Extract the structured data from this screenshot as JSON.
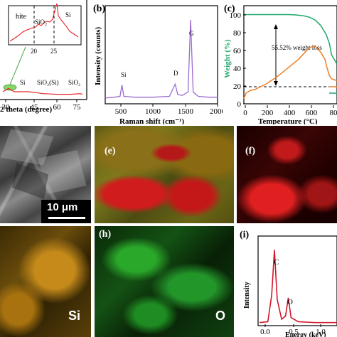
{
  "panel_labels": {
    "b": "(b)",
    "c": "(c)",
    "e": "(e)",
    "f": "(f)",
    "h": "(h)",
    "i": "(i)"
  },
  "map_labels": {
    "h_element": "O",
    "g_element": "Si"
  },
  "sem": {
    "scalebar": "10 μm"
  },
  "chart_data": [
    {
      "id": "a",
      "type": "line",
      "xlabel": "2 theta (degree)",
      "xlim": [
        20,
        80
      ],
      "x_ticks": [
        "30",
        "45",
        "60",
        "75"
      ],
      "legend_partial": "hite",
      "inset_annotations": [
        "SiO₂",
        "Si"
      ],
      "inset_ticks": [
        "20",
        "25"
      ],
      "peak_annotations": [
        "Si",
        "SiO₂(Si)",
        "SiO₂"
      ],
      "series": [
        {
          "color": "#e8222a",
          "x": [
            22,
            26,
            28.4,
            30,
            40,
            47.3,
            50,
            55.8,
            60,
            70,
            76.4,
            78
          ],
          "y": [
            2,
            3,
            2.4,
            2,
            2,
            1.6,
            1.4,
            1.3,
            1.2,
            1.2,
            1.4,
            1.2
          ]
        }
      ]
    },
    {
      "id": "b",
      "type": "line",
      "title": "",
      "xlabel": "Raman shift (cm⁻¹)",
      "ylabel": "Intensity (counts)",
      "xlim": [
        250,
        2000
      ],
      "x_ticks": [
        "500",
        "1000",
        "1500",
        "2000"
      ],
      "annotations": [
        "Si",
        "D",
        "G"
      ],
      "series": [
        {
          "color": "#9b6bd1",
          "x": [
            250,
            400,
            480,
            510,
            540,
            700,
            1000,
            1250,
            1340,
            1380,
            1450,
            1540,
            1580,
            1620,
            1700,
            1850,
            2000
          ],
          "y": [
            0.05,
            0.06,
            0.07,
            0.2,
            0.07,
            0.06,
            0.06,
            0.07,
            0.21,
            0.09,
            0.08,
            0.12,
            0.95,
            0.12,
            0.07,
            0.06,
            0.06
          ]
        }
      ]
    },
    {
      "id": "c",
      "type": "line",
      "xlabel": "Temperature (°C)",
      "ylabel": "Weight (%)",
      "xlim": [
        0,
        850
      ],
      "ylim": [
        0,
        110
      ],
      "x_ticks": [
        "0",
        "200",
        "400",
        "600",
        "80"
      ],
      "y_ticks": [
        "0",
        "20",
        "40",
        "60",
        "80",
        "100"
      ],
      "annotation": "55.52% weight loss",
      "series": [
        {
          "color": "#1ea86b",
          "x": [
            0,
            200,
            400,
            450,
            500,
            550,
            600,
            650,
            700,
            750,
            780,
            800,
            850
          ],
          "y": [
            100,
            100,
            100,
            99.8,
            99.3,
            98.5,
            97,
            94,
            88,
            78,
            68,
            55,
            44.5
          ]
        },
        {
          "color": "#f07f24",
          "x": [
            0,
            20,
            60,
            100,
            200,
            300,
            400,
            500,
            560,
            600,
            650,
            700,
            740,
            760,
            780,
            800,
            850
          ],
          "y": [
            6,
            12,
            15,
            16,
            22,
            30,
            40,
            50,
            58,
            63,
            65,
            58,
            50,
            40,
            32,
            28,
            26
          ]
        }
      ]
    },
    {
      "id": "i",
      "type": "line",
      "xlabel": "Energy (keV)",
      "ylabel": "Intensity",
      "x_ticks": [
        "0.0",
        "0.5",
        "1.0"
      ],
      "annotations": [
        "C",
        "O"
      ],
      "series": [
        {
          "color": "#d0182a",
          "x": [
            0.0,
            0.15,
            0.22,
            0.27,
            0.32,
            0.4,
            0.47,
            0.52,
            0.57,
            0.7,
            1.0,
            1.4
          ],
          "y": [
            0.02,
            0.03,
            0.35,
            0.9,
            0.3,
            0.06,
            0.1,
            0.32,
            0.08,
            0.03,
            0.02,
            0.02
          ]
        }
      ]
    }
  ]
}
